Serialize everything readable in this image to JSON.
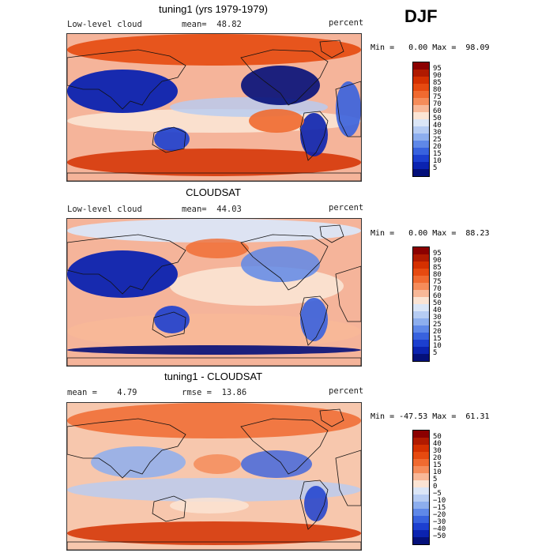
{
  "season": "DJF",
  "panels": [
    {
      "title": "tuning1 (yrs 1979-1979)",
      "left_label": "Low-level cloud",
      "center_label": "mean=  48.82",
      "right_label": "percent",
      "minmax": "Min =   0.00 Max =  98.09",
      "colorbar": {
        "labels": [
          "95",
          "90",
          "85",
          "80",
          "75",
          "70",
          "60",
          "50",
          "40",
          "30",
          "25",
          "20",
          "15",
          "10",
          "5"
        ],
        "colors": [
          "#8b0000",
          "#b01a00",
          "#d43000",
          "#e64a10",
          "#f06a30",
          "#f58c5a",
          "#f8b898",
          "#fbe4d4",
          "#dbe6f7",
          "#b6ccf3",
          "#8daeee",
          "#5f88e8",
          "#3862de",
          "#1c3fcf",
          "#0b23b0",
          "#04107a"
        ]
      },
      "map_kind": "cloud"
    },
    {
      "title": "CLOUDSAT",
      "left_label": "Low-level cloud",
      "center_label": "mean=  44.03",
      "right_label": "percent",
      "minmax": "Min =   0.00 Max =  88.23",
      "colorbar": {
        "labels": [
          "95",
          "90",
          "85",
          "80",
          "75",
          "70",
          "60",
          "50",
          "40",
          "30",
          "25",
          "20",
          "15",
          "10",
          "5"
        ],
        "colors": [
          "#8b0000",
          "#b01a00",
          "#d43000",
          "#e64a10",
          "#f06a30",
          "#f58c5a",
          "#f8b898",
          "#fbe4d4",
          "#dbe6f7",
          "#b6ccf3",
          "#8daeee",
          "#5f88e8",
          "#3862de",
          "#1c3fcf",
          "#0b23b0",
          "#04107a"
        ]
      },
      "map_kind": "obs"
    },
    {
      "title": "tuning1 - CLOUDSAT",
      "left_label": "mean =    4.79",
      "center_label": "rmse =  13.86",
      "right_label": "percent",
      "minmax": "Min = -47.53 Max =  61.31",
      "colorbar": {
        "labels": [
          "50",
          "40",
          "30",
          "20",
          "15",
          "10",
          "5",
          "0",
          "−5",
          "−10",
          "−15",
          "−20",
          "−30",
          "−40",
          "−50"
        ],
        "colors": [
          "#8b0000",
          "#b01a00",
          "#d43000",
          "#e64a10",
          "#f06a30",
          "#f58c5a",
          "#f8b898",
          "#fbe4d4",
          "#dbe6f7",
          "#b6ccf3",
          "#8daeee",
          "#5f88e8",
          "#3862de",
          "#1c3fcf",
          "#0b23b0",
          "#04107a"
        ]
      },
      "map_kind": "diff"
    }
  ]
}
